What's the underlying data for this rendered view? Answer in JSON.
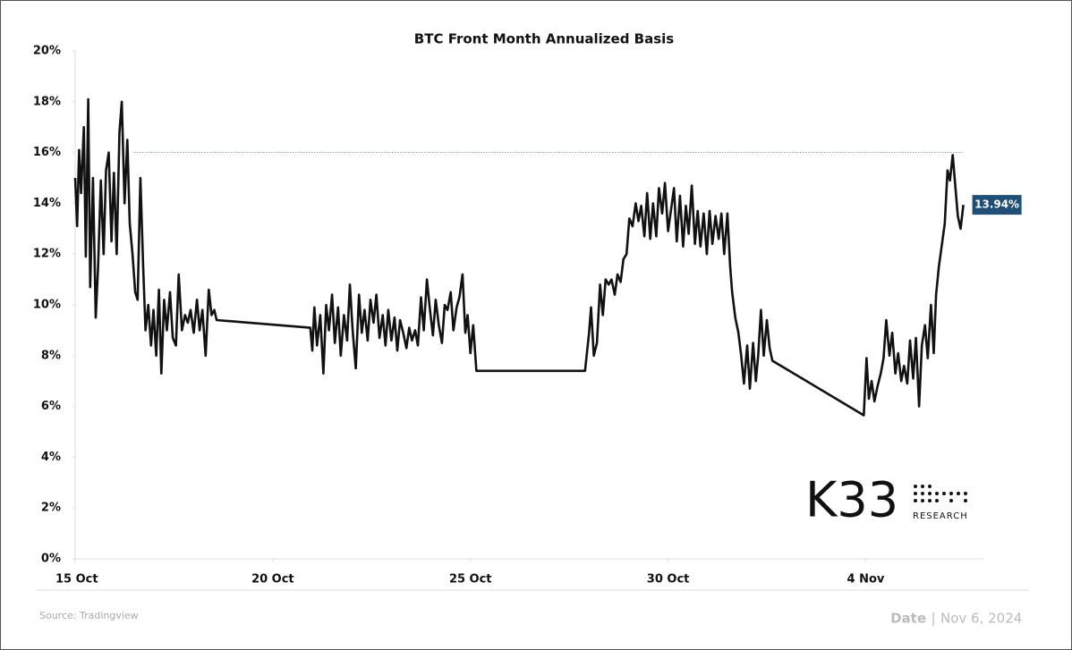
{
  "chart_data": {
    "type": "line",
    "title": "BTC Front Month Annualized Basis",
    "x": [
      0.0,
      0.05,
      0.1,
      0.15,
      0.22,
      0.27,
      0.33,
      0.38,
      0.45,
      0.52,
      0.58,
      0.65,
      0.72,
      0.78,
      0.85,
      0.92,
      0.98,
      1.05,
      1.12,
      1.18,
      1.25,
      1.32,
      1.38,
      1.45,
      1.52,
      1.58,
      1.65,
      1.72,
      1.78,
      1.85,
      1.92,
      1.98,
      2.05,
      2.12,
      2.18,
      2.25,
      2.32,
      2.4,
      2.47,
      2.55,
      2.62,
      2.7,
      2.78,
      2.85,
      2.92,
      3.0,
      3.08,
      3.15,
      3.22,
      3.3,
      3.38,
      3.45,
      3.52,
      3.58,
      5.95,
      6.0,
      6.05,
      6.12,
      6.2,
      6.28,
      6.35,
      6.42,
      6.5,
      6.57,
      6.65,
      6.72,
      6.8,
      6.88,
      6.95,
      7.02,
      7.1,
      7.18,
      7.25,
      7.32,
      7.4,
      7.47,
      7.55,
      7.62,
      7.7,
      7.78,
      7.85,
      7.92,
      8.0,
      8.08,
      8.15,
      8.22,
      8.3,
      8.38,
      8.45,
      8.52,
      8.6,
      8.67,
      8.75,
      8.82,
      8.9,
      8.97,
      9.05,
      9.12,
      9.2,
      9.28,
      9.35,
      9.42,
      9.5,
      9.57,
      9.65,
      9.72,
      9.8,
      9.87,
      9.93,
      10.0,
      10.07,
      10.15,
      12.9,
      13.0,
      13.05,
      13.12,
      13.2,
      13.28,
      13.35,
      13.42,
      13.5,
      13.57,
      13.65,
      13.72,
      13.8,
      13.87,
      13.95,
      14.02,
      14.1,
      14.18,
      14.25,
      14.32,
      14.4,
      14.47,
      14.55,
      14.62,
      14.7,
      14.77,
      14.85,
      14.92,
      15.0,
      15.08,
      15.15,
      15.22,
      15.3,
      15.38,
      15.45,
      15.52,
      15.6,
      15.68,
      15.75,
      15.82,
      15.9,
      15.98,
      16.05,
      16.12,
      16.2,
      16.28,
      16.35,
      16.42,
      16.5,
      16.57,
      16.62,
      16.7,
      16.78,
      16.85,
      16.92,
      17.0,
      17.07,
      17.15,
      17.22,
      17.28,
      17.35,
      17.42,
      17.5,
      17.57,
      17.64,
      19.95,
      20.02,
      20.08,
      20.15,
      20.22,
      20.3,
      20.38,
      20.45,
      20.52,
      20.6,
      20.67,
      20.75,
      20.82,
      20.9,
      20.97,
      21.05,
      21.12,
      21.2,
      21.27,
      21.35,
      21.42,
      21.5,
      21.57,
      21.65,
      21.72,
      21.78,
      21.85,
      21.92,
      22.0,
      22.07,
      22.13,
      22.2,
      22.27,
      22.33,
      22.4,
      22.47
    ],
    "values": [
      15.0,
      13.1,
      16.1,
      14.4,
      17.0,
      11.9,
      18.1,
      10.7,
      15.0,
      9.5,
      11.5,
      14.9,
      12.0,
      15.3,
      16.0,
      12.5,
      15.2,
      12.0,
      16.8,
      18.0,
      14.0,
      16.5,
      13.2,
      12.0,
      10.5,
      10.2,
      15.0,
      11.5,
      9.0,
      10.0,
      8.4,
      9.8,
      8.0,
      10.6,
      7.3,
      10.2,
      9.0,
      10.5,
      8.7,
      8.4,
      11.2,
      9.0,
      9.6,
      9.3,
      9.8,
      8.9,
      10.2,
      9.0,
      9.8,
      8.0,
      10.6,
      9.6,
      9.8,
      9.4,
      9.1,
      8.2,
      9.9,
      8.4,
      9.6,
      7.3,
      10.0,
      9.0,
      10.4,
      8.5,
      9.9,
      8.0,
      9.6,
      8.6,
      10.8,
      9.0,
      7.5,
      10.4,
      8.9,
      9.8,
      8.6,
      10.2,
      9.3,
      10.4,
      8.7,
      9.6,
      8.4,
      9.8,
      8.6,
      9.5,
      8.2,
      9.4,
      8.9,
      8.3,
      9.1,
      8.6,
      9.0,
      8.4,
      10.3,
      9.0,
      11.0,
      9.9,
      8.8,
      10.2,
      9.2,
      8.5,
      10.0,
      9.8,
      10.5,
      9.0,
      9.9,
      10.3,
      11.2,
      8.9,
      9.6,
      8.1,
      9.2,
      7.4,
      7.4,
      8.9,
      9.9,
      8.0,
      8.5,
      10.8,
      9.6,
      11.0,
      10.8,
      11.0,
      10.4,
      11.2,
      10.9,
      11.8,
      12.0,
      13.4,
      13.1,
      14.0,
      13.3,
      13.9,
      12.7,
      14.4,
      12.6,
      14.0,
      12.7,
      14.6,
      13.6,
      14.8,
      12.9,
      13.8,
      14.6,
      12.5,
      14.3,
      12.3,
      13.9,
      12.8,
      14.7,
      12.4,
      13.7,
      12.3,
      13.6,
      12.0,
      13.7,
      12.4,
      13.5,
      12.6,
      13.6,
      12.0,
      13.6,
      11.5,
      10.5,
      9.5,
      8.9,
      8.0,
      6.9,
      8.4,
      6.7,
      8.5,
      7.0,
      8.0,
      9.8,
      8.0,
      9.4,
      8.3,
      7.8,
      5.65,
      7.9,
      6.3,
      7.0,
      6.2,
      6.8,
      7.3,
      7.9,
      9.4,
      8.0,
      8.9,
      7.3,
      8.1,
      7.0,
      7.6,
      6.9,
      8.6,
      7.1,
      8.7,
      6.0,
      8.4,
      9.2,
      7.9,
      10.0,
      8.1,
      10.4,
      11.5,
      12.3,
      13.2,
      15.3,
      14.9,
      15.9,
      14.6,
      13.5,
      13.0,
      13.94
    ],
    "color": "#111111",
    "end_label": "13.94%",
    "reference_line": 16,
    "xlim": [
      0,
      23
    ],
    "xticks": [
      {
        "value": 0,
        "label": "15 Oct"
      },
      {
        "value": 5,
        "label": "20 Oct"
      },
      {
        "value": 10,
        "label": "25 Oct"
      },
      {
        "value": 15,
        "label": "30 Oct"
      },
      {
        "value": 20,
        "label": "4 Nov"
      }
    ],
    "ylim": [
      0,
      20
    ],
    "yticks": [
      {
        "value": 0,
        "label": "0%"
      },
      {
        "value": 2,
        "label": "2%"
      },
      {
        "value": 4,
        "label": "4%"
      },
      {
        "value": 6,
        "label": "6%"
      },
      {
        "value": 8,
        "label": "8%"
      },
      {
        "value": 10,
        "label": "10%"
      },
      {
        "value": 12,
        "label": "12%"
      },
      {
        "value": 14,
        "label": "14%"
      },
      {
        "value": 16,
        "label": "16%"
      },
      {
        "value": 18,
        "label": "18%"
      },
      {
        "value": 20,
        "label": "20%"
      }
    ]
  },
  "logo": {
    "name": "K33",
    "subtitle": "RESEARCH"
  },
  "footer": {
    "source": "Source: Tradingview",
    "date_label": "Date",
    "date": "Nov 6, 2024"
  }
}
